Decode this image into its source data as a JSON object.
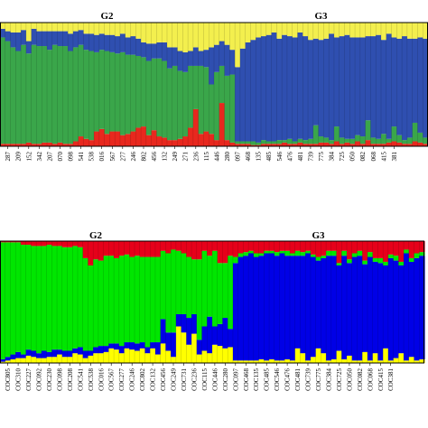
{
  "chart_data": [
    {
      "type": "bar",
      "stacked": true,
      "normalized": true,
      "group_labels": [
        {
          "text": "G2",
          "at_sample": 20
        },
        {
          "text": "G3",
          "at_sample": 61
        }
      ],
      "colors": {
        "red": "#e8281e",
        "green": "#3aa64a",
        "blue": "#2f4fb0",
        "yellow": "#f3ef4e"
      },
      "tick_labels": [
        "287",
        "209",
        "152",
        "342",
        "207",
        "070",
        "098",
        "541",
        "538",
        "016",
        "567",
        "277",
        "246",
        "802",
        "456",
        "132",
        "249",
        "271",
        "236",
        "115",
        "446",
        "280",
        "097",
        "468",
        "135",
        "485",
        "546",
        "476",
        "481",
        "739",
        "775",
        "384",
        "725",
        "050",
        "082",
        "068",
        "415",
        "381"
      ],
      "ylim": [
        0,
        1
      ],
      "series": [
        {
          "name": "red",
          "values": [
            0.02,
            0.02,
            0.02,
            0.02,
            0.02,
            0.03,
            0.02,
            0.02,
            0.03,
            0.03,
            0.02,
            0.03,
            0.02,
            0.02,
            0.04,
            0.08,
            0.06,
            0.05,
            0.12,
            0.14,
            0.1,
            0.12,
            0.12,
            0.09,
            0.1,
            0.12,
            0.15,
            0.16,
            0.09,
            0.13,
            0.08,
            0.07,
            0.05,
            0.05,
            0.06,
            0.08,
            0.15,
            0.3,
            0.1,
            0.12,
            0.1,
            0.05,
            0.35,
            0.05,
            0.03,
            0.02,
            0.02,
            0.02,
            0.01,
            0.01,
            0.02,
            0.02,
            0.02,
            0.02,
            0.03,
            0.02,
            0.02,
            0.03,
            0.02,
            0.02,
            0.02,
            0.03,
            0.03,
            0.02,
            0.04,
            0.02,
            0.03,
            0.02,
            0.04,
            0.02,
            0.05,
            0.02,
            0.02,
            0.02,
            0.03,
            0.04,
            0.03,
            0.02,
            0.02,
            0.04,
            0.03,
            0.02
          ]
        },
        {
          "name": "green",
          "values": [
            0.86,
            0.83,
            0.78,
            0.75,
            0.8,
            0.72,
            0.8,
            0.79,
            0.78,
            0.75,
            0.8,
            0.78,
            0.79,
            0.75,
            0.76,
            0.74,
            0.72,
            0.72,
            0.64,
            0.64,
            0.67,
            0.64,
            0.63,
            0.67,
            0.64,
            0.62,
            0.58,
            0.56,
            0.6,
            0.58,
            0.63,
            0.62,
            0.58,
            0.6,
            0.55,
            0.52,
            0.5,
            0.35,
            0.55,
            0.52,
            0.4,
            0.55,
            0.3,
            0.52,
            0.55,
            0.02,
            0.02,
            0.02,
            0.03,
            0.02,
            0.03,
            0.02,
            0.02,
            0.03,
            0.02,
            0.04,
            0.02,
            0.03,
            0.03,
            0.04,
            0.15,
            0.05,
            0.04,
            0.03,
            0.12,
            0.05,
            0.03,
            0.04,
            0.05,
            0.06,
            0.16,
            0.05,
            0.04,
            0.08,
            0.03,
            0.12,
            0.06,
            0.03,
            0.05,
            0.15,
            0.08,
            0.05
          ]
        },
        {
          "name": "blue",
          "values": [
            0.07,
            0.08,
            0.12,
            0.15,
            0.12,
            0.1,
            0.13,
            0.12,
            0.12,
            0.15,
            0.11,
            0.12,
            0.12,
            0.14,
            0.13,
            0.12,
            0.13,
            0.14,
            0.14,
            0.13,
            0.13,
            0.14,
            0.14,
            0.15,
            0.14,
            0.15,
            0.14,
            0.12,
            0.14,
            0.12,
            0.13,
            0.15,
            0.17,
            0.15,
            0.16,
            0.16,
            0.12,
            0.15,
            0.12,
            0.14,
            0.3,
            0.22,
            0.2,
            0.25,
            0.2,
            0.6,
            0.75,
            0.8,
            0.82,
            0.85,
            0.84,
            0.86,
            0.88,
            0.82,
            0.85,
            0.83,
            0.84,
            0.86,
            0.84,
            0.8,
            0.7,
            0.78,
            0.8,
            0.86,
            0.72,
            0.82,
            0.84,
            0.82,
            0.79,
            0.8,
            0.68,
            0.82,
            0.84,
            0.76,
            0.85,
            0.72,
            0.78,
            0.84,
            0.8,
            0.68,
            0.77,
            0.8
          ]
        },
        {
          "name": "yellow",
          "values": [
            0.05,
            0.07,
            0.08,
            0.08,
            0.06,
            0.15,
            0.05,
            0.07,
            0.07,
            0.07,
            0.07,
            0.07,
            0.07,
            0.09,
            0.07,
            0.06,
            0.09,
            0.09,
            0.1,
            0.09,
            0.1,
            0.1,
            0.11,
            0.09,
            0.12,
            0.11,
            0.13,
            0.16,
            0.17,
            0.17,
            0.16,
            0.16,
            0.2,
            0.2,
            0.23,
            0.24,
            0.23,
            0.2,
            0.23,
            0.22,
            0.2,
            0.18,
            0.15,
            0.18,
            0.22,
            0.36,
            0.21,
            0.16,
            0.14,
            0.12,
            0.11,
            0.1,
            0.08,
            0.13,
            0.1,
            0.11,
            0.12,
            0.08,
            0.11,
            0.14,
            0.13,
            0.14,
            0.13,
            0.09,
            0.12,
            0.11,
            0.1,
            0.12,
            0.12,
            0.12,
            0.11,
            0.11,
            0.1,
            0.14,
            0.09,
            0.12,
            0.13,
            0.11,
            0.13,
            0.13,
            0.12,
            0.13
          ]
        }
      ]
    },
    {
      "type": "bar",
      "stacked": true,
      "normalized": true,
      "group_labels": [
        {
          "text": "G2",
          "at_sample": 18
        },
        {
          "text": "G3",
          "at_sample": 61
        }
      ],
      "colors": {
        "red": "#e6001a",
        "green": "#00e600",
        "blue": "#0000e6",
        "yellow": "#ffff00"
      },
      "tick_labels": [
        "COC805",
        "COC310",
        "COC227",
        "COC092",
        "COC230",
        "COC098",
        "COC208",
        "COC541",
        "COC538",
        "COC016",
        "COC567",
        "COC277",
        "COC246",
        "COC802",
        "COC132",
        "COC456",
        "COC249",
        "COC731",
        "COC236",
        "COC115",
        "COC446",
        "COC280",
        "COC097",
        "COC468",
        "COC135",
        "COC485",
        "COC546",
        "COC476",
        "COC481",
        "COC739",
        "COC775",
        "COC384",
        "COC725",
        "COC050",
        "COC082",
        "COC068",
        "COC415",
        "COC381"
      ],
      "ylim": [
        0,
        1
      ],
      "series": [
        {
          "name": "yellow",
          "values": [
            0.01,
            0.02,
            0.03,
            0.04,
            0.04,
            0.06,
            0.05,
            0.04,
            0.04,
            0.05,
            0.05,
            0.07,
            0.05,
            0.05,
            0.08,
            0.07,
            0.04,
            0.06,
            0.08,
            0.08,
            0.09,
            0.12,
            0.11,
            0.08,
            0.12,
            0.11,
            0.1,
            0.12,
            0.08,
            0.12,
            0.07,
            0.16,
            0.1,
            0.05,
            0.3,
            0.25,
            0.15,
            0.24,
            0.07,
            0.1,
            0.08,
            0.15,
            0.14,
            0.12,
            0.13,
            0.02,
            0.02,
            0.02,
            0.02,
            0.02,
            0.03,
            0.02,
            0.03,
            0.02,
            0.02,
            0.03,
            0.02,
            0.12,
            0.08,
            0.02,
            0.05,
            0.12,
            0.08,
            0.02,
            0.03,
            0.1,
            0.03,
            0.06,
            0.02,
            0.02,
            0.09,
            0.02,
            0.08,
            0.02,
            0.12,
            0.02,
            0.04,
            0.08,
            0.02,
            0.05,
            0.02,
            0.03
          ]
        },
        {
          "name": "blue",
          "values": [
            0.02,
            0.03,
            0.04,
            0.05,
            0.03,
            0.05,
            0.05,
            0.04,
            0.06,
            0.04,
            0.06,
            0.04,
            0.05,
            0.05,
            0.04,
            0.06,
            0.06,
            0.04,
            0.05,
            0.06,
            0.05,
            0.04,
            0.05,
            0.06,
            0.05,
            0.06,
            0.06,
            0.05,
            0.05,
            0.05,
            0.1,
            0.2,
            0.15,
            0.2,
            0.1,
            0.15,
            0.22,
            0.16,
            0.12,
            0.2,
            0.3,
            0.15,
            0.18,
            0.25,
            0.15,
            0.8,
            0.85,
            0.86,
            0.88,
            0.85,
            0.85,
            0.88,
            0.87,
            0.86,
            0.88,
            0.85,
            0.86,
            0.76,
            0.8,
            0.88,
            0.82,
            0.72,
            0.78,
            0.86,
            0.85,
            0.7,
            0.85,
            0.76,
            0.85,
            0.86,
            0.72,
            0.85,
            0.75,
            0.8,
            0.68,
            0.84,
            0.8,
            0.72,
            0.88,
            0.78,
            0.84,
            0.85
          ]
        },
        {
          "name": "green",
          "values": [
            0.96,
            0.94,
            0.92,
            0.9,
            0.9,
            0.86,
            0.86,
            0.88,
            0.86,
            0.88,
            0.85,
            0.85,
            0.85,
            0.85,
            0.84,
            0.82,
            0.76,
            0.7,
            0.72,
            0.7,
            0.74,
            0.72,
            0.7,
            0.74,
            0.72,
            0.7,
            0.72,
            0.7,
            0.74,
            0.7,
            0.7,
            0.56,
            0.65,
            0.68,
            0.52,
            0.5,
            0.5,
            0.45,
            0.66,
            0.62,
            0.5,
            0.62,
            0.5,
            0.45,
            0.6,
            0.05,
            0.03,
            0.03,
            0.02,
            0.03,
            0.02,
            0.02,
            0.02,
            0.03,
            0.02,
            0.04,
            0.02,
            0.04,
            0.03,
            0.02,
            0.02,
            0.03,
            0.02,
            0.04,
            0.04,
            0.02,
            0.04,
            0.03,
            0.03,
            0.04,
            0.03,
            0.04,
            0.03,
            0.04,
            0.03,
            0.03,
            0.04,
            0.03,
            0.03,
            0.03,
            0.04,
            0.03
          ]
        },
        {
          "name": "red",
          "values": [
            0.01,
            0.01,
            0.01,
            0.01,
            0.03,
            0.03,
            0.04,
            0.04,
            0.04,
            0.03,
            0.04,
            0.04,
            0.05,
            0.05,
            0.04,
            0.05,
            0.14,
            0.2,
            0.15,
            0.16,
            0.12,
            0.12,
            0.14,
            0.12,
            0.11,
            0.13,
            0.12,
            0.13,
            0.13,
            0.13,
            0.13,
            0.08,
            0.1,
            0.07,
            0.08,
            0.1,
            0.13,
            0.15,
            0.15,
            0.08,
            0.12,
            0.08,
            0.18,
            0.18,
            0.12,
            0.13,
            0.1,
            0.09,
            0.08,
            0.1,
            0.1,
            0.08,
            0.08,
            0.09,
            0.08,
            0.08,
            0.1,
            0.08,
            0.09,
            0.08,
            0.11,
            0.13,
            0.12,
            0.08,
            0.08,
            0.18,
            0.08,
            0.15,
            0.1,
            0.08,
            0.16,
            0.09,
            0.14,
            0.14,
            0.17,
            0.11,
            0.12,
            0.17,
            0.07,
            0.14,
            0.1,
            0.09
          ]
        }
      ]
    }
  ]
}
